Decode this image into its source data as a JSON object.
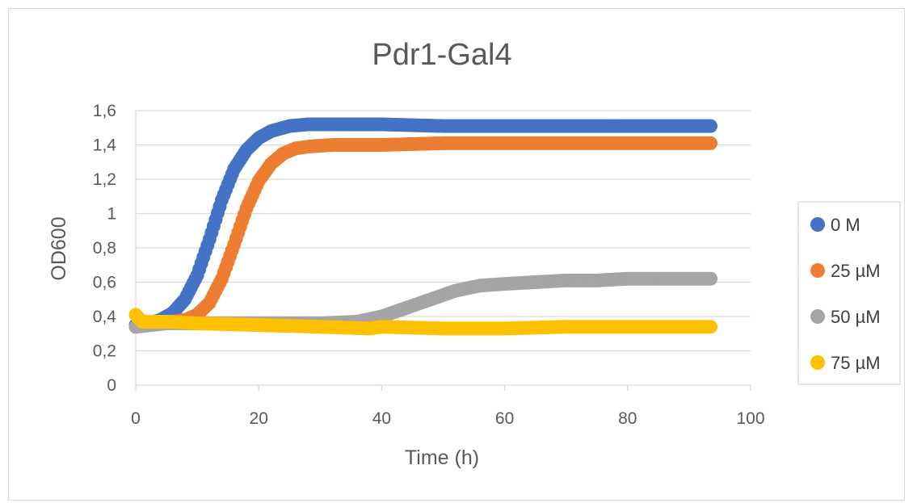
{
  "chart_data": {
    "type": "scatter",
    "title": "Pdr1-Gal4",
    "xlabel": "Time (h)",
    "ylabel": "OD600",
    "xlim": [
      0,
      100
    ],
    "ylim": [
      0,
      1.6
    ],
    "xticks": [
      0,
      20,
      40,
      60,
      80,
      100
    ],
    "yticks": [
      0,
      0.2,
      0.4,
      0.6,
      0.8,
      1,
      1.2,
      1.4,
      1.6
    ],
    "xtick_labels": [
      "0",
      "20",
      "40",
      "60",
      "80",
      "100"
    ],
    "ytick_labels": [
      "0",
      "0,2",
      "0,4",
      "0,6",
      "0,8",
      "1",
      "1,2",
      "1,4",
      "1,6"
    ],
    "grid": "horizontal",
    "legend_position": "right",
    "series": [
      {
        "name": "0 M",
        "color": "#4472C4",
        "points": [
          [
            0,
            0.35
          ],
          [
            2,
            0.36
          ],
          [
            4,
            0.38
          ],
          [
            6,
            0.42
          ],
          [
            8,
            0.5
          ],
          [
            10,
            0.64
          ],
          [
            12,
            0.85
          ],
          [
            14,
            1.08
          ],
          [
            16,
            1.26
          ],
          [
            18,
            1.37
          ],
          [
            20,
            1.44
          ],
          [
            22,
            1.48
          ],
          [
            25,
            1.51
          ],
          [
            28,
            1.52
          ],
          [
            32,
            1.52
          ],
          [
            40,
            1.52
          ],
          [
            50,
            1.51
          ],
          [
            60,
            1.51
          ],
          [
            70,
            1.51
          ],
          [
            80,
            1.51
          ],
          [
            90,
            1.51
          ],
          [
            93.5,
            1.51
          ]
        ]
      },
      {
        "name": "25 µM",
        "color": "#ED7D31",
        "points": [
          [
            0,
            0.34
          ],
          [
            2,
            0.35
          ],
          [
            4,
            0.36
          ],
          [
            6,
            0.37
          ],
          [
            8,
            0.38
          ],
          [
            10,
            0.41
          ],
          [
            12,
            0.48
          ],
          [
            14,
            0.62
          ],
          [
            16,
            0.82
          ],
          [
            18,
            1.03
          ],
          [
            20,
            1.19
          ],
          [
            22,
            1.29
          ],
          [
            24,
            1.35
          ],
          [
            26,
            1.38
          ],
          [
            28,
            1.39
          ],
          [
            32,
            1.4
          ],
          [
            40,
            1.4
          ],
          [
            50,
            1.41
          ],
          [
            60,
            1.41
          ],
          [
            70,
            1.41
          ],
          [
            80,
            1.41
          ],
          [
            90,
            1.41
          ],
          [
            93.5,
            1.41
          ]
        ]
      },
      {
        "name": "50 µM",
        "color": "#A5A5A5",
        "points": [
          [
            0,
            0.34
          ],
          [
            5,
            0.36
          ],
          [
            10,
            0.36
          ],
          [
            20,
            0.36
          ],
          [
            30,
            0.36
          ],
          [
            36,
            0.37
          ],
          [
            40,
            0.4
          ],
          [
            44,
            0.45
          ],
          [
            48,
            0.5
          ],
          [
            52,
            0.55
          ],
          [
            56,
            0.58
          ],
          [
            60,
            0.59
          ],
          [
            65,
            0.6
          ],
          [
            70,
            0.61
          ],
          [
            75,
            0.61
          ],
          [
            80,
            0.62
          ],
          [
            85,
            0.62
          ],
          [
            90,
            0.62
          ],
          [
            93.5,
            0.62
          ]
        ]
      },
      {
        "name": "75 µM",
        "color": "#FFC000",
        "points": [
          [
            0,
            0.41
          ],
          [
            1,
            0.37
          ],
          [
            5,
            0.37
          ],
          [
            10,
            0.36
          ],
          [
            20,
            0.35
          ],
          [
            30,
            0.34
          ],
          [
            38,
            0.33
          ],
          [
            40,
            0.34
          ],
          [
            50,
            0.33
          ],
          [
            60,
            0.33
          ],
          [
            70,
            0.34
          ],
          [
            80,
            0.34
          ],
          [
            90,
            0.34
          ],
          [
            93.5,
            0.34
          ]
        ]
      }
    ]
  }
}
